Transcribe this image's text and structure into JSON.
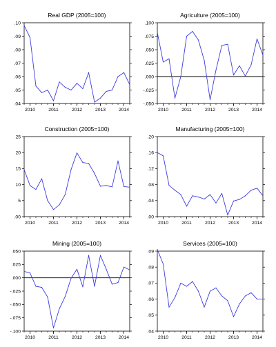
{
  "colors": {
    "series": "#3b3be0",
    "axis": "#000000",
    "zero_line": "#000000"
  },
  "chart_data": [
    {
      "type": "line",
      "title": "Real GDP (2005=100)",
      "x_start": 2009.75,
      "x_step": 0.25,
      "x_ticks": [
        2010,
        2011,
        2012,
        2013,
        2014
      ],
      "ylim": [
        0.04,
        0.1
      ],
      "y_ticks": [
        ".10",
        ".09",
        ".08",
        ".07",
        ".06",
        ".05",
        ".04"
      ],
      "y_tick_values": [
        0.1,
        0.09,
        0.08,
        0.07,
        0.06,
        0.05,
        0.04
      ],
      "zero_line": false,
      "grid": false,
      "values": [
        0.098,
        0.089,
        0.053,
        0.048,
        0.05,
        0.042,
        0.056,
        0.052,
        0.05,
        0.055,
        0.051,
        0.063,
        0.041,
        0.044,
        0.049,
        0.05,
        0.06,
        0.063,
        0.054
      ]
    },
    {
      "type": "line",
      "title": "Agriculture (2005=100)",
      "x_start": 2009.75,
      "x_step": 0.25,
      "x_ticks": [
        2010,
        2011,
        2012,
        2013,
        2014
      ],
      "ylim": [
        -0.05,
        0.1
      ],
      "y_ticks": [
        ".100",
        ".075",
        ".050",
        ".025",
        ".000",
        "-.025",
        "-.050"
      ],
      "y_tick_values": [
        0.1,
        0.075,
        0.05,
        0.025,
        0.0,
        -0.025,
        -0.05
      ],
      "zero_line": true,
      "grid": false,
      "values": [
        0.082,
        0.027,
        0.033,
        -0.04,
        0.0,
        0.075,
        0.084,
        0.068,
        0.03,
        -0.043,
        0.012,
        0.058,
        0.06,
        0.003,
        0.02,
        0.001,
        0.022,
        0.07,
        0.04
      ]
    },
    {
      "type": "line",
      "title": "Construction (2005=100)",
      "x_start": 2009.75,
      "x_step": 0.25,
      "x_ticks": [
        2010,
        2011,
        2012,
        2013,
        2014
      ],
      "ylim": [
        0,
        25
      ],
      "y_ticks": [
        "25",
        "20",
        "15",
        "10",
        "5",
        ".00"
      ],
      "y_tick_values": [
        25,
        20,
        15,
        10,
        5,
        0
      ],
      "zero_line": false,
      "grid": false,
      "values": [
        14.7,
        9.7,
        8.5,
        11.8,
        5.0,
        2.2,
        3.7,
        6.9,
        14.7,
        19.9,
        16.9,
        16.6,
        13.5,
        9.5,
        9.7,
        9.3,
        17.4,
        9.4,
        9.2
      ]
    },
    {
      "type": "line",
      "title": "Manufacturing (2005=100)",
      "x_start": 2009.75,
      "x_step": 0.25,
      "x_ticks": [
        2010,
        2011,
        2012,
        2013,
        2014
      ],
      "ylim": [
        0,
        0.2
      ],
      "y_ticks": [
        ".20",
        ".16",
        ".12",
        ".08",
        ".04",
        ".00"
      ],
      "y_tick_values": [
        0.2,
        0.16,
        0.12,
        0.08,
        0.04,
        0.0
      ],
      "zero_line": false,
      "grid": false,
      "values": [
        0.16,
        0.152,
        0.078,
        0.066,
        0.055,
        0.026,
        0.052,
        0.049,
        0.044,
        0.055,
        0.034,
        0.058,
        0.004,
        0.039,
        0.043,
        0.052,
        0.066,
        0.071,
        0.052
      ]
    },
    {
      "type": "line",
      "title": "Mining (2005=100)",
      "x_start": 2009.75,
      "x_step": 0.25,
      "x_ticks": [
        2010,
        2011,
        2012,
        2013,
        2014
      ],
      "ylim": [
        -0.1,
        0.05
      ],
      "y_ticks": [
        ".050",
        ".025",
        ".000",
        "-.025",
        "-.050",
        "-.075",
        "-.100"
      ],
      "y_tick_values": [
        0.05,
        0.025,
        0.0,
        -0.025,
        -0.05,
        -0.075,
        -0.1
      ],
      "zero_line": true,
      "grid": false,
      "values": [
        0.012,
        0.009,
        -0.016,
        -0.018,
        -0.036,
        -0.094,
        -0.058,
        -0.035,
        -0.001,
        0.016,
        -0.017,
        0.042,
        -0.016,
        0.042,
        0.016,
        -0.012,
        -0.009,
        0.02,
        0.015
      ]
    },
    {
      "type": "line",
      "title": "Services (2005=100)",
      "x_start": 2009.75,
      "x_step": 0.25,
      "x_ticks": [
        2010,
        2011,
        2012,
        2013,
        2014
      ],
      "ylim": [
        0.04,
        0.09
      ],
      "y_ticks": [
        ".09",
        ".08",
        ".07",
        ".06",
        ".05",
        ".04"
      ],
      "y_tick_values": [
        0.09,
        0.08,
        0.07,
        0.06,
        0.05,
        0.04
      ],
      "zero_line": false,
      "grid": false,
      "values": [
        0.091,
        0.082,
        0.055,
        0.061,
        0.07,
        0.068,
        0.071,
        0.065,
        0.055,
        0.065,
        0.067,
        0.062,
        0.059,
        0.049,
        0.057,
        0.062,
        0.064,
        0.06,
        0.06
      ]
    }
  ]
}
